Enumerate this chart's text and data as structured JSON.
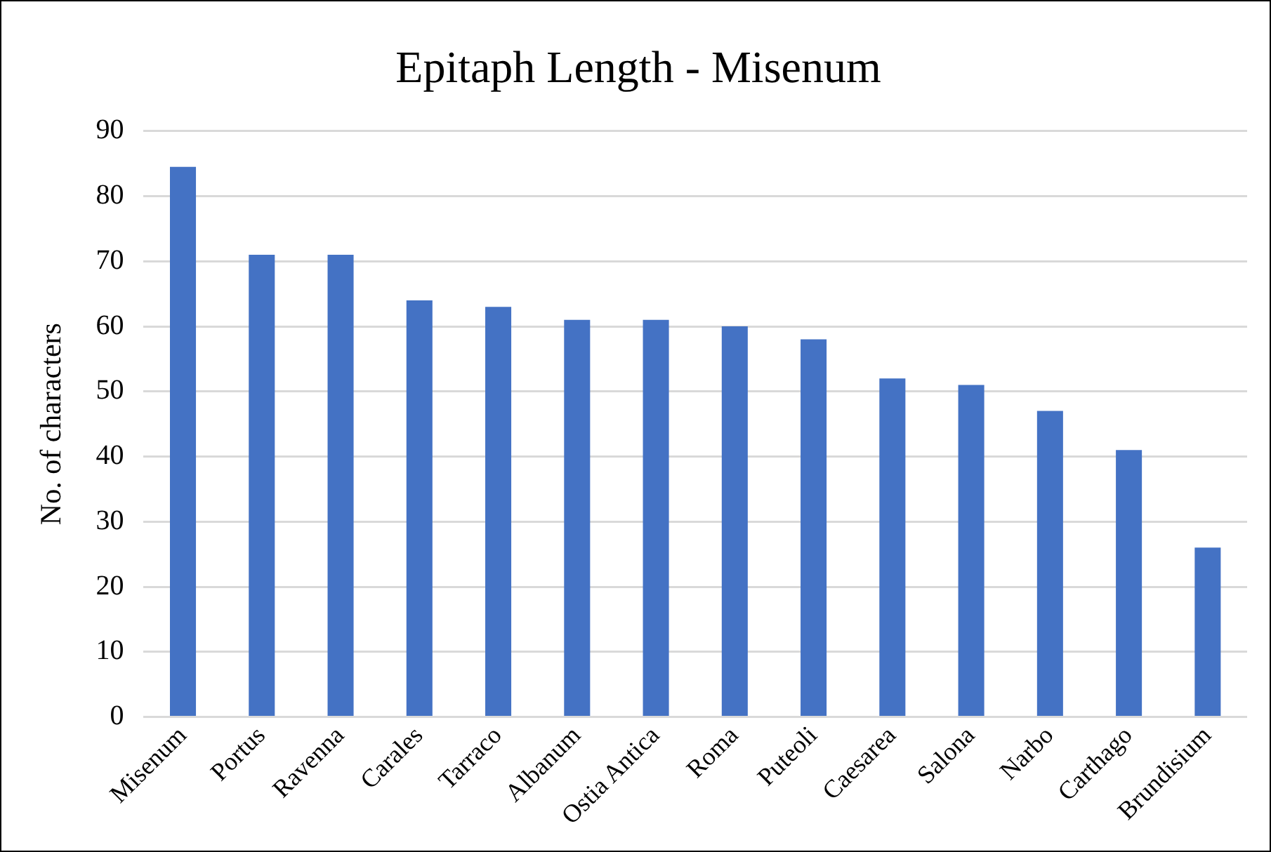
{
  "chart_data": {
    "type": "bar",
    "title": "Epitaph Length - Misenum",
    "ylabel": "No. of characters",
    "categories": [
      "Misenum",
      "Portus",
      "Ravenna",
      "Carales",
      "Tarraco",
      "Albanum",
      "Ostia Antica",
      "Roma",
      "Puteoli",
      "Caesarea",
      "Salona",
      "Narbo",
      "Carthago",
      "Brundisium"
    ],
    "values": [
      84.5,
      71,
      71,
      64,
      63,
      61,
      61,
      60,
      58,
      52,
      51,
      47,
      41,
      26
    ],
    "color": "#4472c4",
    "ylim": [
      0,
      90
    ],
    "yticks": [
      0,
      10,
      20,
      30,
      40,
      50,
      60,
      70,
      80,
      90
    ],
    "grid": "y",
    "legend": false
  }
}
